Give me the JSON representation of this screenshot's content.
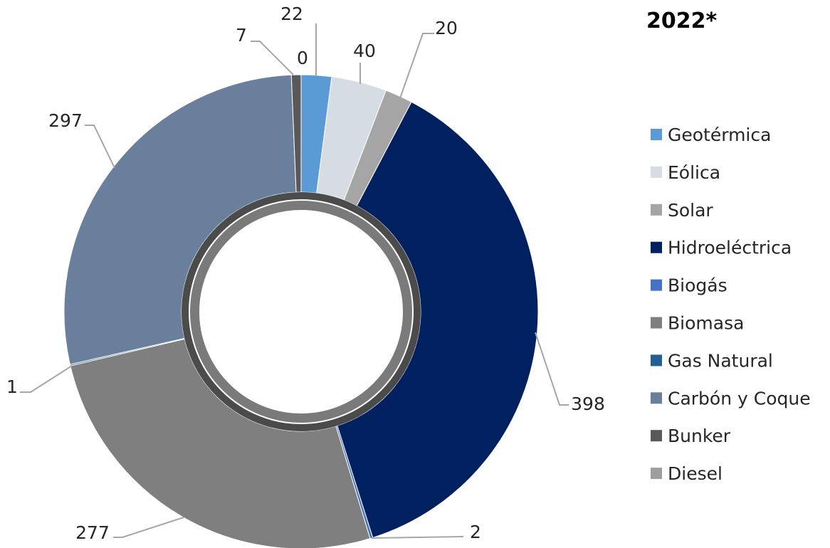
{
  "chart_data": {
    "type": "pie",
    "title": "2022*",
    "legend_position": "right",
    "slices": [
      {
        "name": "Geotérmica",
        "value": 22,
        "color": "#5B9BD5"
      },
      {
        "name": "Eólica",
        "value": 40,
        "color": "#D6DCE4"
      },
      {
        "name": "Solar",
        "value": 20,
        "color": "#A5A5A5"
      },
      {
        "name": "Hidroeléctrica",
        "value": 398,
        "color": "#002060"
      },
      {
        "name": "Biogás",
        "value": 2,
        "color": "#4472C4"
      },
      {
        "name": "Biomasa",
        "value": 277,
        "color": "#7F7F7F"
      },
      {
        "name": "Gas Natural",
        "value": 1,
        "color": "#255E91"
      },
      {
        "name": "Carbón y Coque",
        "value": 297,
        "color": "#6A7F9B"
      },
      {
        "name": "Bunker",
        "value": 7,
        "color": "#595959"
      },
      {
        "name": "Diesel",
        "value": 0,
        "color": "#9E9E9E"
      }
    ]
  }
}
